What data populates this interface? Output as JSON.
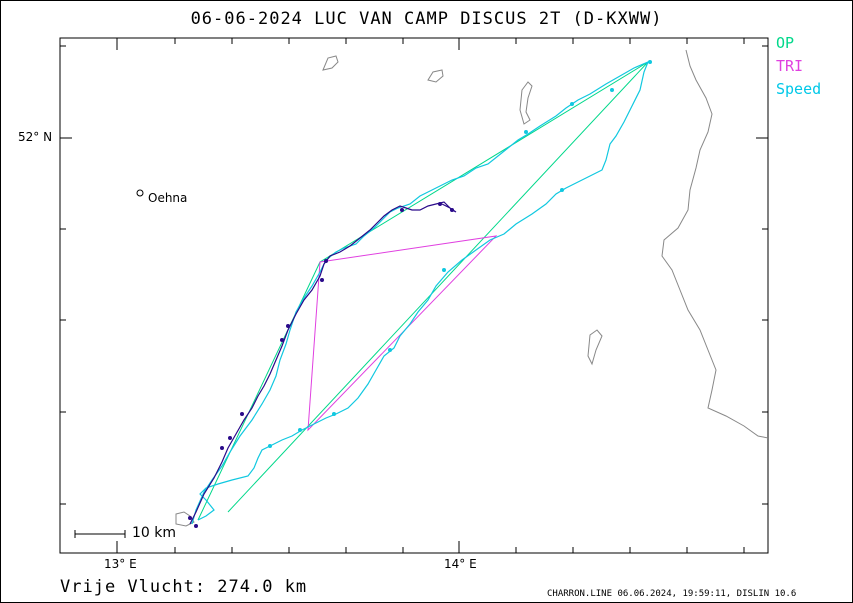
{
  "title": "06-06-2024   LUC VAN CAMP   DISCUS 2T (D-KXWW)",
  "legend": [
    {
      "label": "OP",
      "color": "#00d88a"
    },
    {
      "label": "TRI",
      "color": "#e040e0"
    },
    {
      "label": "Speed",
      "color": "#00c8e8"
    }
  ],
  "axes": {
    "lat_label": "52° N",
    "lon_labels": [
      "13° E",
      "14° E"
    ]
  },
  "town": "Oehna",
  "scale_label": "10  km",
  "footer": "Vrije Vlucht:  274.0 km",
  "credit": "CHARRON.LINE 06.06.2024, 19:59:11, DISLIN 10.6",
  "colors": {
    "track_low": "#2a0a8a",
    "track_high": "#10c8e0",
    "op_line": "#00d88a",
    "tri_line": "#e040e0",
    "terrain": "#888888"
  }
}
